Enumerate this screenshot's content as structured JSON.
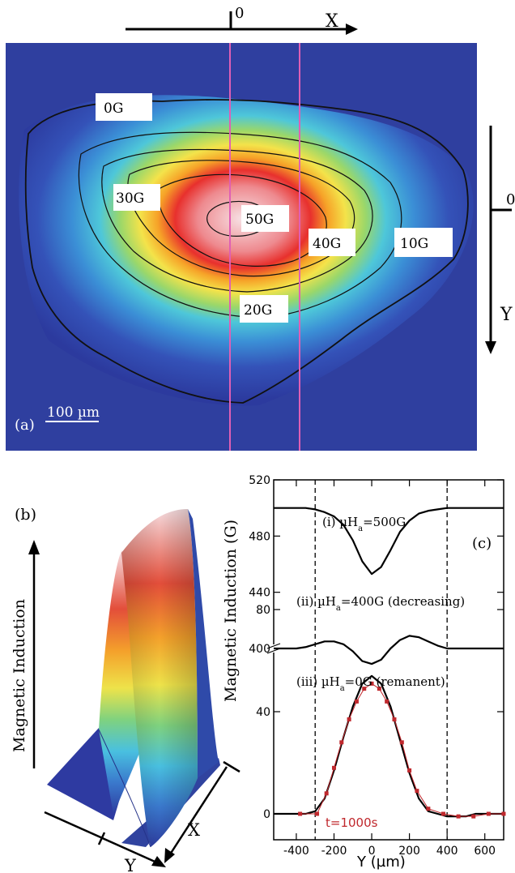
{
  "panel_a": {
    "label": "(a)",
    "scale_bar": "100 µm",
    "x_axis": {
      "zero": "0",
      "name": "X"
    },
    "y_axis": {
      "zero": "0",
      "name": "Y"
    },
    "contour_labels": [
      "0G",
      "10G",
      "20G",
      "30G",
      "40G",
      "50G"
    ]
  },
  "panel_b": {
    "label": "(b)",
    "z_axis": "Magnetic Induction",
    "x_axis": "X",
    "y_axis": "Y"
  },
  "chart_data": {
    "type": "line",
    "panel_label": "(c)",
    "xlabel": "Y (µm)",
    "ylabel": "Magnetic Induction (G)",
    "xlim": [
      -520,
      700
    ],
    "x_ticks": [
      -400,
      -200,
      0,
      200,
      400,
      600
    ],
    "y_ticks_upper": [
      400,
      440,
      480,
      520
    ],
    "y_ticks_lower": [
      0,
      40,
      80
    ],
    "axis_break": "between 80 and 400",
    "vlines": [
      -300,
      400
    ],
    "series": [
      {
        "name": "(i) µHa=500G",
        "label_main": "(i) µH",
        "label_sub": "a",
        "label_tail": "=500G",
        "x": [
          -520,
          -450,
          -400,
          -350,
          -300,
          -250,
          -200,
          -150,
          -100,
          -50,
          0,
          50,
          100,
          150,
          200,
          250,
          300,
          350,
          400,
          450,
          500,
          550,
          600,
          650,
          700
        ],
        "y": [
          500,
          500,
          500,
          500,
          499,
          497,
          494,
          488,
          477,
          462,
          453,
          458,
          470,
          483,
          491,
          496,
          498,
          499,
          500,
          500,
          500,
          500,
          500,
          500,
          500
        ]
      },
      {
        "name": "(ii) µHa=400G (decreasing)",
        "label_main": "(ii) µH",
        "label_sub": "a",
        "label_tail": "=400G (decreasing)",
        "x": [
          -520,
          -450,
          -400,
          -350,
          -300,
          -250,
          -200,
          -150,
          -100,
          -50,
          0,
          50,
          100,
          150,
          200,
          250,
          300,
          350,
          400,
          450,
          500,
          550,
          600,
          650,
          700
        ],
        "y": [
          400,
          400,
          400,
          401,
          403,
          405,
          405,
          403,
          398,
          391,
          389,
          392,
          400,
          406,
          409,
          408,
          405,
          402,
          400,
          400,
          400,
          400,
          400,
          400,
          400
        ]
      },
      {
        "name": "(iii) µHa=0G (remanent)",
        "label_main": "(iii) µH",
        "label_sub": "a",
        "label_tail": "=0G (remanent)",
        "x": [
          -520,
          -450,
          -400,
          -350,
          -300,
          -250,
          -200,
          -150,
          -100,
          -50,
          0,
          50,
          100,
          150,
          200,
          250,
          300,
          350,
          400,
          450,
          500,
          550,
          600,
          650,
          700
        ],
        "y": [
          0,
          0,
          0,
          0,
          1,
          6,
          17,
          30,
          42,
          51,
          54,
          51,
          42,
          29,
          16,
          6,
          1,
          0,
          -1,
          -1,
          -1,
          0,
          0,
          0,
          0
        ]
      },
      {
        "name": "t=1000s",
        "color": "#c0282d",
        "x": [
          -380,
          -290,
          -240,
          -200,
          -160,
          -120,
          -80,
          -40,
          0,
          40,
          80,
          120,
          160,
          200,
          240,
          300,
          380,
          460,
          540,
          620,
          700
        ],
        "y": [
          0,
          0,
          8,
          18,
          28,
          37,
          44,
          49,
          51,
          49,
          44,
          37,
          28,
          17,
          9,
          2,
          0,
          -1,
          -1,
          0,
          0
        ]
      }
    ]
  }
}
